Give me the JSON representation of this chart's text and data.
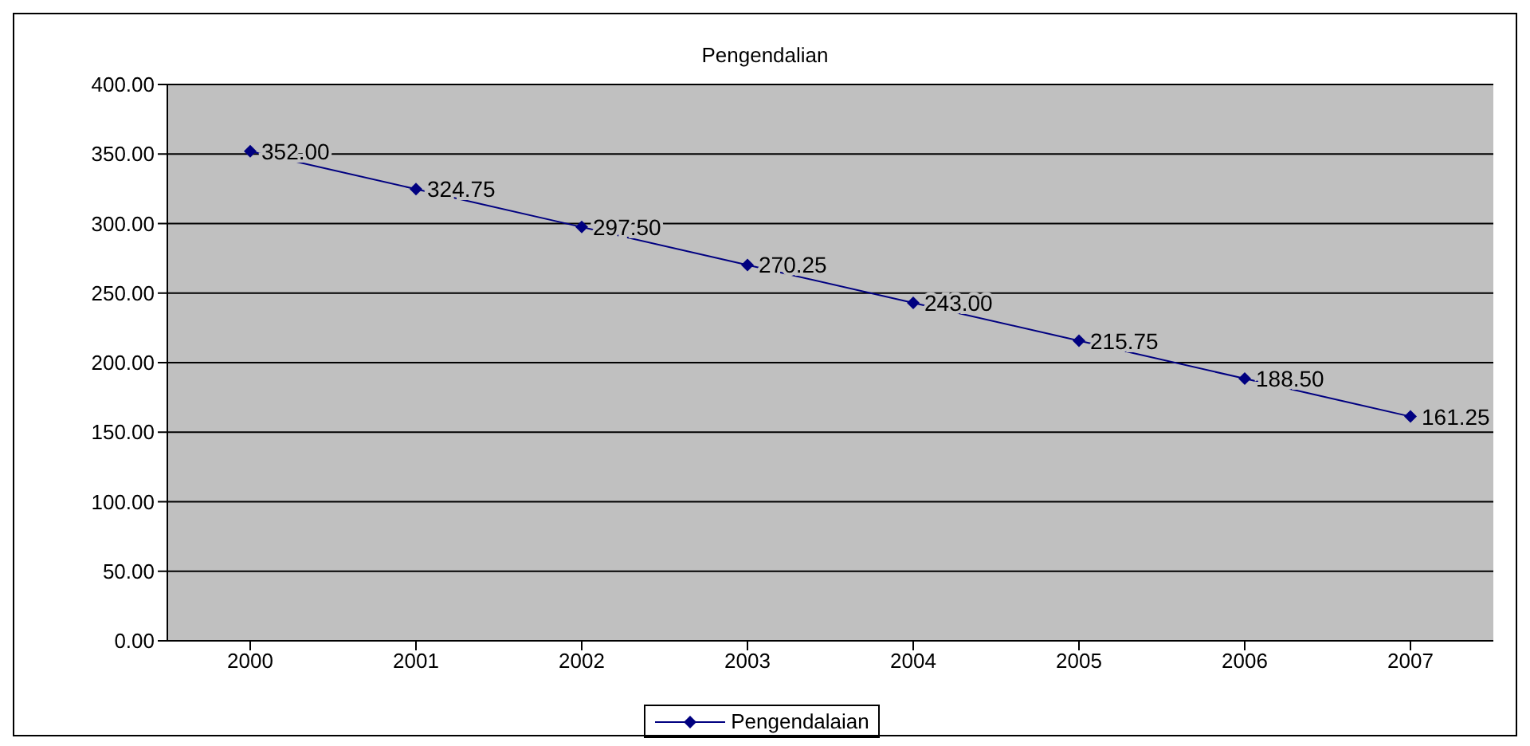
{
  "chart_data": {
    "type": "line",
    "title": "Pengendalian",
    "categories": [
      "2000",
      "2001",
      "2002",
      "2003",
      "2004",
      "2005",
      "2006",
      "2007"
    ],
    "series": [
      {
        "name": "Pengendalaian",
        "color": "#000080",
        "values": [
          352,
          324.75,
          297.5,
          270.25,
          243,
          215.75,
          188.5,
          161.25
        ],
        "value_labels": [
          "352.00",
          "324.75",
          "297.50",
          "270.25",
          "243.00",
          "215.75",
          "188.50",
          "161.25"
        ]
      }
    ],
    "ylim": [
      0,
      400
    ],
    "yticks": [
      {
        "value": 0,
        "label": "0.00"
      },
      {
        "value": 50,
        "label": "50.00"
      },
      {
        "value": 100,
        "label": "100.00"
      },
      {
        "value": 150,
        "label": "150.00"
      },
      {
        "value": 200,
        "label": "200.00"
      },
      {
        "value": 250,
        "label": "250.00"
      },
      {
        "value": 300,
        "label": "300.00"
      },
      {
        "value": 350,
        "label": "350.00"
      },
      {
        "value": 400,
        "label": "400.00"
      }
    ],
    "grid": "y",
    "legend": "bottom",
    "marker": "diamond",
    "line_style": "solid"
  }
}
